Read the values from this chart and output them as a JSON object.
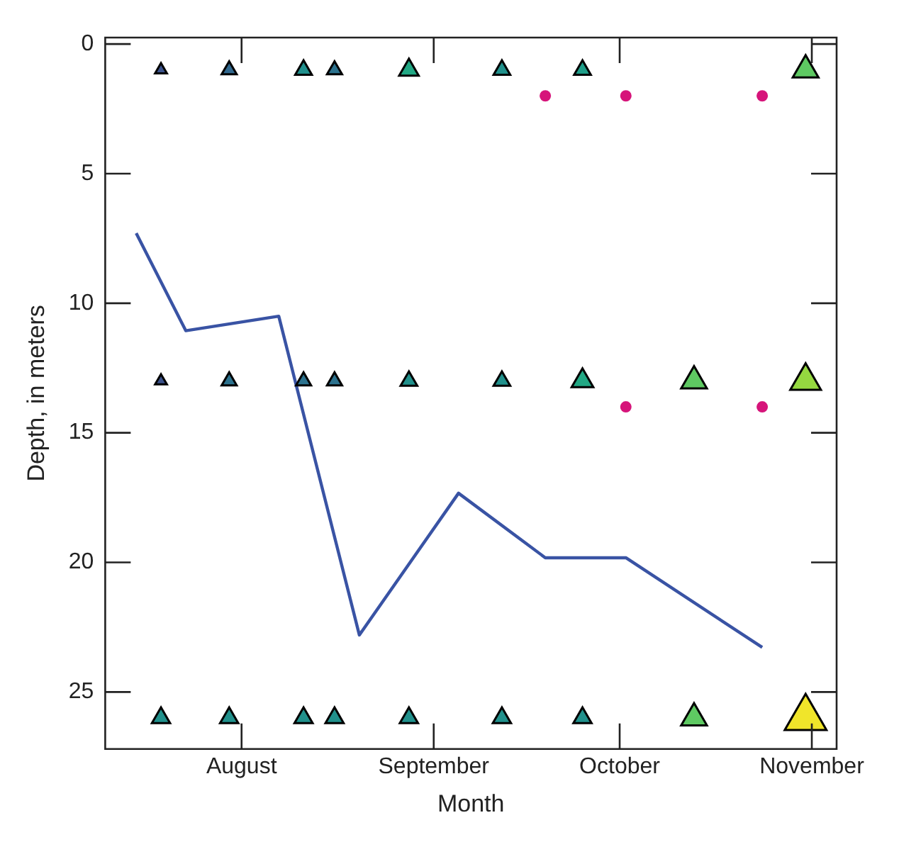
{
  "chart_data": {
    "type": "bubble",
    "xlabel": "Month",
    "ylabel": "Depth, in meters",
    "xlim": [
      "--07-10",
      "--11-05"
    ],
    "xticks": [
      {
        "value": "--08-01",
        "label": "August"
      },
      {
        "value": "--09-01",
        "label": "September"
      },
      {
        "value": "--10-01",
        "label": "October"
      },
      {
        "value": "--11-01",
        "label": "November"
      }
    ],
    "ylim": [
      27.2,
      -0.25
    ],
    "yticks": [
      0,
      5,
      10,
      15,
      20,
      25
    ],
    "grid": false,
    "legend": false,
    "series": [
      {
        "marker": "triangle",
        "x": [
          "--07-19",
          "--07-30",
          "--08-11",
          "--08-16",
          "--08-28",
          "--09-12",
          "--09-25",
          "--10-31"
        ],
        "values": [
          1,
          1,
          1,
          1,
          1,
          1,
          1,
          1
        ],
        "sizes": [
          0.08,
          0.13,
          0.16,
          0.13,
          0.22,
          0.16,
          0.16,
          0.38
        ],
        "colors": [
          "#3b528b",
          "#31688e",
          "#21908d",
          "#2c728e",
          "#22a884",
          "#21918c",
          "#1f9e89",
          "#5ec962"
        ]
      },
      {
        "marker": "triangle",
        "x": [
          "--07-19",
          "--07-30",
          "--08-11",
          "--08-16",
          "--08-28",
          "--09-12",
          "--09-25",
          "--10-13",
          "--10-31"
        ],
        "values": [
          13,
          13,
          13,
          13,
          13,
          13,
          13,
          13,
          13
        ],
        "sizes": [
          0.08,
          0.13,
          0.13,
          0.13,
          0.16,
          0.16,
          0.27,
          0.38,
          0.54
        ],
        "colors": [
          "#3b528b",
          "#2c728e",
          "#2c728e",
          "#2c728e",
          "#21918c",
          "#21918c",
          "#22a884",
          "#5ec962",
          "#95d840"
        ]
      },
      {
        "marker": "triangle",
        "x": [
          "--07-19",
          "--07-30",
          "--08-11",
          "--08-16",
          "--08-28",
          "--09-12",
          "--09-25",
          "--10-13",
          "--10-31"
        ],
        "values": [
          26,
          26,
          26,
          26,
          26,
          26,
          26,
          26,
          26
        ],
        "sizes": [
          0.19,
          0.19,
          0.19,
          0.19,
          0.19,
          0.19,
          0.19,
          0.38,
          1
        ],
        "colors": [
          "#21918c",
          "#21918c",
          "#21918c",
          "#21918c",
          "#21918c",
          "#21918c",
          "#21918c",
          "#5ec962",
          "#f0e52a"
        ]
      },
      {
        "type": "scatter",
        "marker": "circle",
        "color": "#d6147a",
        "x": [
          "--09-19",
          "--10-02",
          "--10-24",
          "--10-02",
          "--10-24"
        ],
        "values": [
          2,
          2,
          2,
          14,
          14
        ]
      },
      {
        "type": "line",
        "marker": "none",
        "line_style": "solid",
        "color": "#3953a4",
        "x": [
          "--07-15",
          "--07-23",
          "--08-07",
          "--08-20",
          "--09-05",
          "--09-19",
          "--10-02",
          "--10-24"
        ],
        "values": [
          7.3,
          11.06,
          10.5,
          22.8,
          17.33,
          19.82,
          19.82,
          23.28
        ]
      }
    ]
  }
}
